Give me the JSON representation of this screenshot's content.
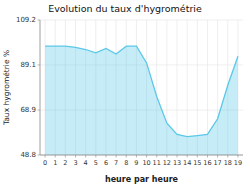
{
  "chart_data": {
    "type": "area",
    "title": "Evolution du taux d'hygrométrie",
    "x_label": "heure par heure",
    "y_label": "Taux hygrométrie %",
    "x": [
      0,
      1,
      2,
      3,
      4,
      5,
      6,
      7,
      8,
      9,
      10,
      11,
      12,
      13,
      14,
      15,
      16,
      17,
      18,
      19
    ],
    "values": [
      97.5,
      97.5,
      97.5,
      97.0,
      96.0,
      94.5,
      96.5,
      94.0,
      97.5,
      97.5,
      90.0,
      75.0,
      63.0,
      58.0,
      57.0,
      57.5,
      58.0,
      65.0,
      80.0,
      93.0
    ],
    "color": "#5bc8e8",
    "xlim": [
      -0.5,
      19.5
    ],
    "xticks": [
      0,
      1,
      2,
      3,
      4,
      5,
      6,
      7,
      8,
      9,
      10,
      11,
      12,
      13,
      14,
      15,
      16,
      17,
      18,
      19
    ],
    "ylim": [
      48.8,
      109.2
    ],
    "yticks": [
      48.8,
      68.9,
      89.1,
      109.2
    ],
    "grid": true
  }
}
